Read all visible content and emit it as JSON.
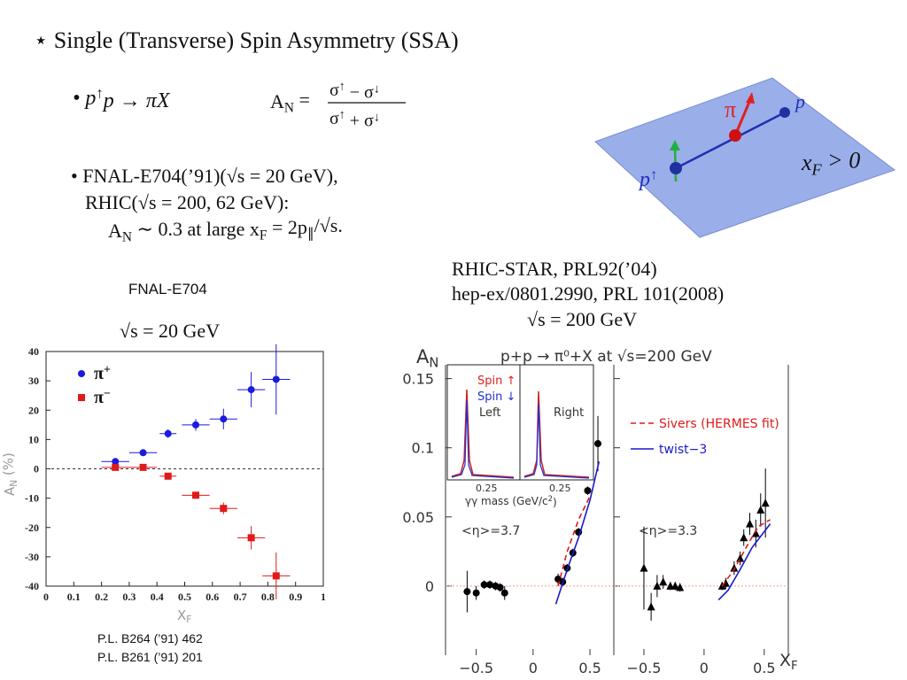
{
  "title": "⋆ Single (Transverse) Spin Asymmetry (SSA)",
  "reaction": [
    "• p",
    {
      "sup": "↑"
    },
    "p → πX"
  ],
  "formula": {
    "lhs": [
      "A",
      {
        "sub": "N"
      },
      " ="
    ],
    "numerator": [
      "σ",
      {
        "sup": "↑"
      },
      " − σ",
      {
        "sup": "↓"
      }
    ],
    "denominator": [
      "σ",
      {
        "sup": "↑"
      },
      " + σ",
      {
        "sup": "↓"
      }
    ]
  },
  "bullets": [
    [
      "• FNAL-E704(’91)(√s = 20 GeV),"
    ],
    [
      "RHIC(√s = 200, 62 GeV):"
    ],
    [
      "A",
      {
        "sub": "N"
      },
      " ∼ 0.3 at large x",
      {
        "sub": "F"
      },
      " = 2p",
      {
        "sub": "∥"
      },
      "/√s."
    ]
  ],
  "diagram": {
    "pion": "π",
    "proton": "p",
    "polarized_proton": [
      "p",
      {
        "sup": "↑"
      }
    ],
    "condition": [
      "x",
      {
        "sub": "F"
      },
      " > 0"
    ]
  },
  "fnal": {
    "label": "FNAL-E704",
    "energy": "√s = 20 GeV",
    "references": [
      "P.L. B264 (’91) 462",
      "P.L. B261 (’91) 201"
    ]
  },
  "star": {
    "lines": [
      "RHIC-STAR, PRL92(’04)",
      "hep-ex/0801.2990, PRL 101(2008)",
      "√s = 200 GeV"
    ]
  },
  "chart_data": [
    {
      "type": "scatter",
      "xlabel": [
        "X",
        {
          "sub": "F"
        }
      ],
      "ylabel": [
        "A",
        {
          "sub": "N"
        },
        " (%)"
      ],
      "xlim": [
        0,
        1
      ],
      "ylim": [
        -40,
        40
      ],
      "xticks": [
        0,
        0.1,
        0.2,
        0.3,
        0.4,
        0.5,
        0.6,
        0.7,
        0.8,
        0.9,
        1
      ],
      "yticks": [
        -40,
        -30,
        -20,
        -10,
        0,
        10,
        20,
        30,
        40
      ],
      "zero_line": true,
      "legend": "upper left",
      "series": [
        {
          "name": [
            "π",
            {
              "sup": "+"
            }
          ],
          "color": "#1a1ae0",
          "marker": "circle",
          "x": [
            0.25,
            0.35,
            0.44,
            0.54,
            0.64,
            0.74,
            0.83
          ],
          "values": [
            2.5,
            5.5,
            12,
            15,
            17,
            27,
            30.5
          ],
          "xerr": [
            0.05,
            0.05,
            0.03,
            0.05,
            0.05,
            0.05,
            0.05
          ],
          "yerr": [
            1,
            1,
            1.5,
            2,
            3.5,
            6,
            12
          ]
        },
        {
          "name": [
            "π",
            {
              "sup": "−"
            }
          ],
          "color": "#e01a1a",
          "marker": "square",
          "x": [
            0.25,
            0.35,
            0.44,
            0.54,
            0.64,
            0.74,
            0.83
          ],
          "values": [
            0.5,
            0.5,
            -2.5,
            -9,
            -13.5,
            -23.5,
            -36.5
          ],
          "xerr": [
            0.05,
            0.05,
            0.03,
            0.05,
            0.05,
            0.05,
            0.05
          ],
          "yerr": [
            1,
            1,
            1,
            1,
            2,
            4,
            8
          ]
        }
      ]
    },
    {
      "type": "scatter",
      "title": "p+p → π⁰+X at √s=200 GeV",
      "ylabel": [
        "A",
        {
          "sub": "N"
        }
      ],
      "xlabel": [
        "X",
        {
          "sub": "F"
        }
      ],
      "ylim": [
        -0.05,
        0.16
      ],
      "yticks": [
        0,
        0.05,
        0.1,
        0.15
      ],
      "zero_line": true,
      "legend": "upper right",
      "panels": [
        {
          "xlim": [
            -0.77,
            0.71
          ],
          "xticks": [
            {
              "value": -0.5,
              "label": "−0.5"
            },
            0,
            0.5
          ],
          "annotation": "<η>=3.7",
          "series": [
            {
              "color": "#000000",
              "marker": "circle",
              "x": [
                -0.58,
                -0.5,
                -0.43,
                -0.38,
                -0.33,
                -0.29,
                -0.25,
                0.22,
                0.26,
                0.3,
                0.35,
                0.4,
                0.48,
                0.57
              ],
              "values": [
                -0.004,
                -0.005,
                0.001,
                0.001,
                0,
                -0.001,
                -0.005,
                0.005,
                0.003,
                0.013,
                0.024,
                0.039,
                0.069,
                0.103
              ],
              "yerr": [
                0.015,
                0.005,
                0.003,
                0.003,
                0.003,
                0.003,
                0.005,
                0.004,
                0.003,
                0.003,
                0.003,
                0.003,
                0.003,
                0.02
              ]
            },
            {
              "color": "#e01a1a",
              "line_style": "dashed",
              "x": [
                0.22,
                0.3,
                0.4,
                0.5
              ],
              "values": [
                0,
                0.025,
                0.048,
                0.065
              ]
            },
            {
              "color": "#1a1ac8",
              "line_style": "solid",
              "x": [
                0.2,
                0.3,
                0.4,
                0.5,
                0.58
              ],
              "values": [
                -0.013,
                0.012,
                0.035,
                0.062,
                0.09
              ]
            }
          ]
        },
        {
          "xlim": [
            -0.75,
            0.7
          ],
          "xticks": [
            {
              "value": -0.5,
              "label": "−0.5"
            },
            0,
            0.5
          ],
          "annotation": "<η>=3.3",
          "series": [
            {
              "color": "#000000",
              "marker": "triangle",
              "x": [
                -0.5,
                -0.44,
                -0.39,
                -0.34,
                -0.28,
                -0.24,
                -0.2,
                0.15,
                0.18,
                0.25,
                0.3,
                0.33,
                0.38,
                0.43,
                0.47,
                0.51
              ],
              "values": [
                0.013,
                -0.015,
                0,
                0.003,
                0,
                0,
                -0.001,
                0,
                0.002,
                0.013,
                0.02,
                0.035,
                0.045,
                0.038,
                0.055,
                0.06
              ],
              "yerr": [
                0.03,
                0.01,
                0.008,
                0.005,
                0.003,
                0.003,
                0.003,
                0.003,
                0.004,
                0.005,
                0.005,
                0.006,
                0.008,
                0.01,
                0.012,
                0.025
              ]
            },
            {
              "name": "Sivers (HERMES fit)",
              "color": "#e01a1a",
              "line_style": "dashed",
              "x": [
                0.15,
                0.25,
                0.35,
                0.45,
                0.55
              ],
              "values": [
                0,
                0.012,
                0.028,
                0.043,
                0.048
              ]
            },
            {
              "name": "twist−3",
              "color": "#1a1ac8",
              "line_style": "solid",
              "x": [
                0.12,
                0.2,
                0.3,
                0.4,
                0.55
              ],
              "values": [
                -0.01,
                -0.003,
                0.012,
                0.028,
                0.045
              ]
            }
          ]
        }
      ],
      "inset": {
        "spin_up": "Spin ↑",
        "spin_down": "Spin ↓",
        "left": "Left",
        "right": "Right",
        "xticks": [
          "0.25",
          "0.25"
        ],
        "xlabel": [
          "γγ mass (GeV/c",
          {
            "sup": "2"
          },
          ")"
        ]
      }
    }
  ]
}
